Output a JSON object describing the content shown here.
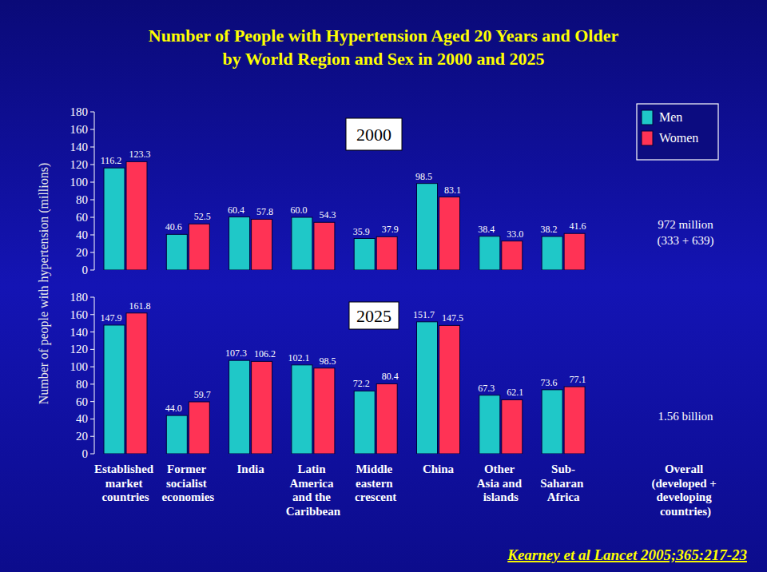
{
  "title": [
    "Number of People with Hypertension Aged 20 Years and Older",
    "by World Region and Sex in 2000 and 2025"
  ],
  "y_label": "Number of people with hypertension (millions)",
  "source": "Kearney et al Lancet 2005;365:217-23",
  "chart_data": [
    {
      "type": "bar",
      "title": "2000",
      "categories": [
        "Established market countries",
        "Former socialist economies",
        "India",
        "Latin America and the Caribbean",
        "Middle eastern crescent",
        "China",
        "Other Asia and islands",
        "Sub-Saharan Africa",
        "Overall (developed + developing countries)"
      ],
      "series": [
        {
          "name": "Men",
          "color": "#1fc8c8",
          "values": [
            116.2,
            40.6,
            60.4,
            60.0,
            35.9,
            98.5,
            38.4,
            38.2,
            null
          ],
          "value_labels": [
            "116.2",
            "40.6",
            "60.4",
            "60.0",
            "35.9",
            "98.5",
            "38.4",
            "38.2",
            null
          ]
        },
        {
          "name": "Women",
          "color": "#ff3355",
          "values": [
            123.3,
            52.5,
            57.8,
            54.3,
            37.9,
            83.1,
            33.0,
            41.6,
            null
          ],
          "value_labels": [
            "123.3",
            "52.5",
            "57.8",
            "54.3",
            "37.9",
            "83.1",
            "33.0",
            "41.6",
            null
          ]
        }
      ],
      "ylim": [
        0,
        180
      ],
      "yticks": [
        0,
        20,
        40,
        60,
        80,
        100,
        120,
        140,
        160,
        180
      ],
      "data_labels": true,
      "tick_labels": "y",
      "legend": "top right",
      "annotations": [
        "972 million",
        "(333 + 639)"
      ]
    },
    {
      "type": "bar",
      "title": "2025",
      "categories": [
        "Established market countries",
        "Former socialist economies",
        "India",
        "Latin America and the Caribbean",
        "Middle eastern crescent",
        "China",
        "Other Asia and islands",
        "Sub-Saharan Africa",
        "Overall (developed + developing countries)"
      ],
      "series": [
        {
          "name": "Men",
          "color": "#1fc8c8",
          "values": [
            147.9,
            44.0,
            107.3,
            102.1,
            72.2,
            151.7,
            67.3,
            73.6,
            null
          ],
          "value_labels": [
            "147.9",
            "44.0",
            "107.3",
            "102.1",
            "72.2",
            "151.7",
            "67.3",
            "73.6",
            null
          ]
        },
        {
          "name": "Women",
          "color": "#ff3355",
          "values": [
            161.8,
            59.7,
            106.2,
            98.5,
            80.4,
            147.5,
            62.1,
            77.1,
            null
          ],
          "value_labels": [
            "161.8",
            "59.7",
            "106.2",
            "98.5",
            "80.4",
            "147.5",
            "62.1",
            "77.1",
            null
          ]
        }
      ],
      "ylim": [
        0,
        180
      ],
      "yticks": [
        0,
        20,
        40,
        60,
        80,
        100,
        120,
        140,
        160,
        180
      ],
      "data_labels": true,
      "annotations": [
        "1.56 billion"
      ]
    }
  ]
}
